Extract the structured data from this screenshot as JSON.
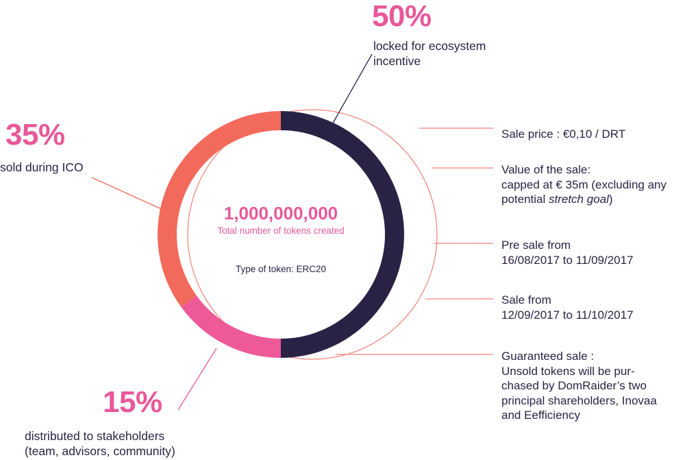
{
  "chart_data": {
    "type": "pie",
    "title": "",
    "slices": [
      {
        "label": "locked for ecosystem incentive",
        "percent_label": "50%",
        "value": 50,
        "color": "#2a2244"
      },
      {
        "label": "distributed to stakeholders (team, advisors, community)",
        "percent_label": "15%",
        "value": 15,
        "color": "#ee5a98"
      },
      {
        "label": "sold during ICO",
        "percent_label": "35%",
        "value": 35,
        "color": "#f26a5c"
      }
    ],
    "center": {
      "total": "1,000,000,000",
      "total_caption": "Total number of tokens created",
      "token_type": "Type of token:  ERC20"
    }
  },
  "labels": {
    "p50": "50%",
    "l50a": "locked for ecosystem",
    "l50b": "incentive",
    "p35": "35%",
    "l35": "sold during ICO",
    "p15": "15%",
    "l15a": "distributed to stakeholders",
    "l15b": "(team, advisors, community)"
  },
  "details": {
    "sale_price": "Sale price :  €0,10 / DRT",
    "value_1": "Value of the sale:",
    "value_2": "capped at € 35m (excluding any",
    "value_3a": "potential ",
    "value_3b": "stretch goal",
    "value_3c": ")",
    "presale_1": "Pre sale from",
    "presale_2": "16/08/2017 to 11/09/2017",
    "sale_1": "Sale from",
    "sale_2": "12/09/2017 to 11/10/2017",
    "guar_1": "Guaranteed sale :",
    "guar_2": "Unsold tokens will be pur-",
    "guar_3": "chased by DomRaider’s two",
    "guar_4": "principal shareholders, Inovaa",
    "guar_5": "and Eefficiency"
  },
  "colors": {
    "navy": "#2a2244",
    "pink": "#ee5a98",
    "coral": "#f26a5c",
    "pink_text": "#e8589a"
  }
}
